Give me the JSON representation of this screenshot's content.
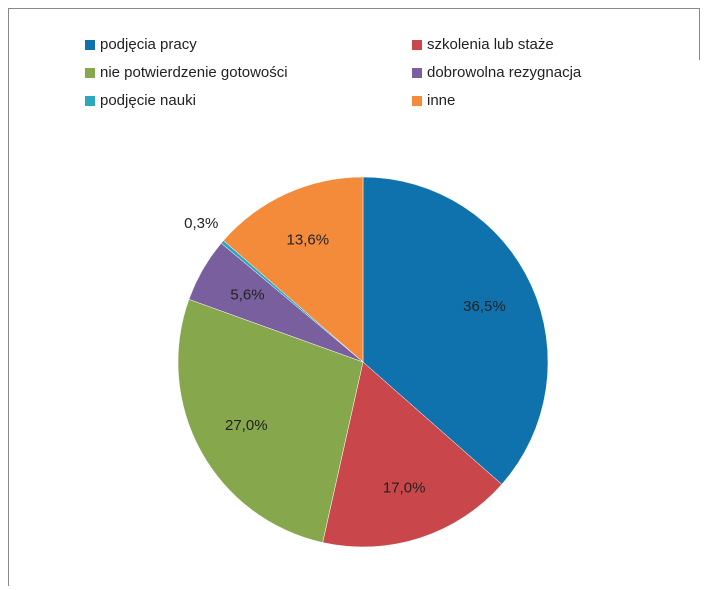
{
  "chart_data": {
    "type": "pie",
    "categories": [
      "podjęcia pracy",
      "szkolenia lub staże",
      "nie potwierdzenie gotowości",
      "dobrowolna rezygnacja",
      "podjęcie nauki",
      "inne"
    ],
    "values": [
      36.5,
      17.0,
      27.0,
      5.6,
      0.3,
      13.6
    ],
    "value_labels": [
      "36,5%",
      "17,0%",
      "27,0%",
      "5,6%",
      "0,3%",
      "13,6%"
    ],
    "colors": [
      "#0f72ad",
      "#c9474a",
      "#86a74b",
      "#7a5f9e",
      "#2ba7c1",
      "#f38b3b"
    ],
    "legend": "top"
  }
}
